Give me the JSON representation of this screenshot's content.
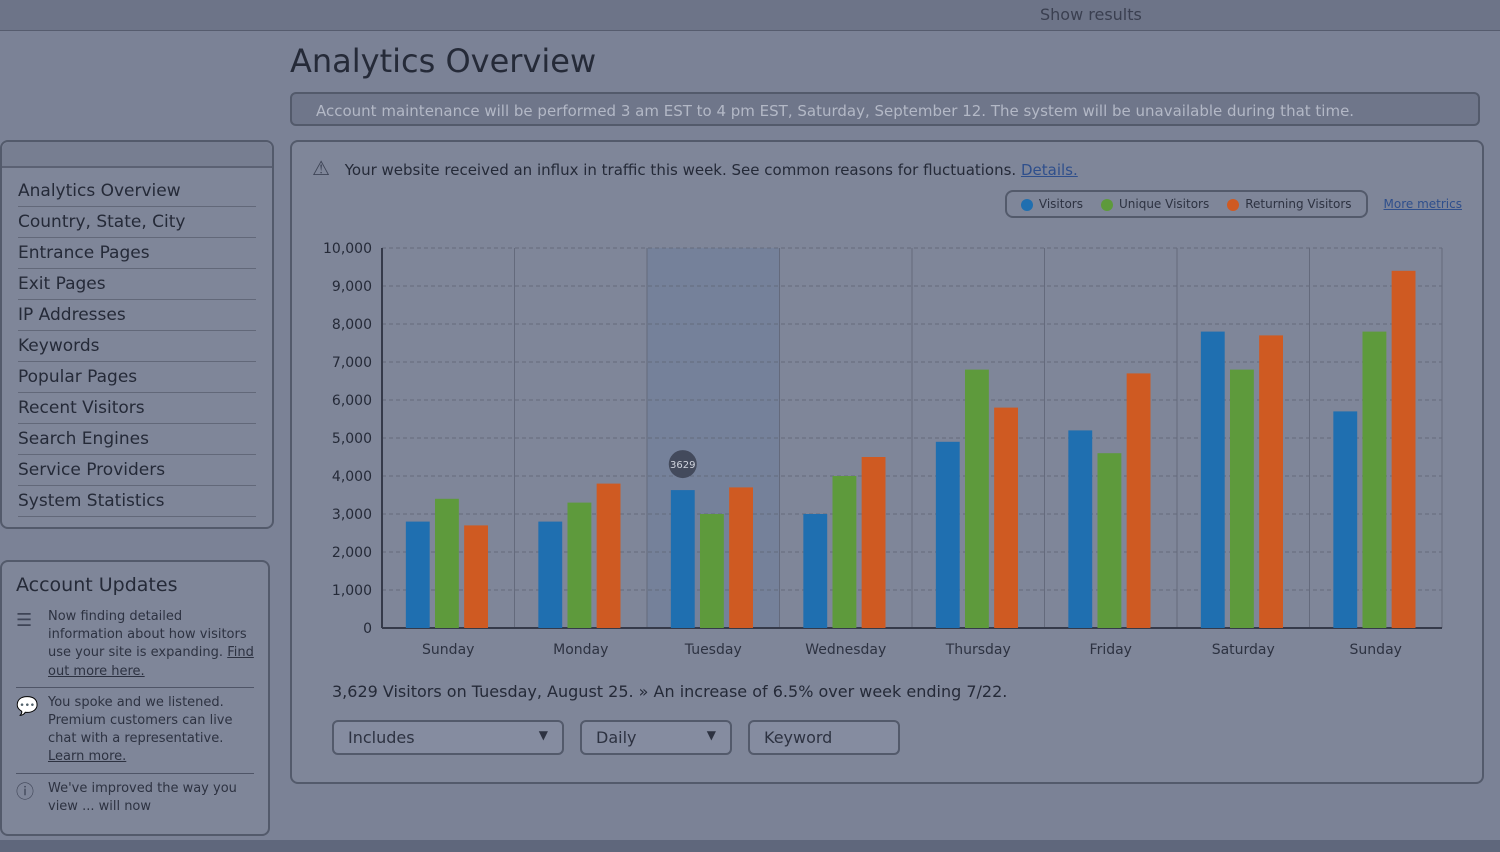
{
  "header": {
    "title": "Analytics Overview",
    "top_partial": "Show results"
  },
  "banner": {
    "text": "Account maintenance will be performed 3 am EST to 4 pm EST, Saturday, September 12. The system will be unavailable during that time."
  },
  "sidebar": {
    "items": [
      {
        "label": "Analytics Overview"
      },
      {
        "label": "Country, State, City"
      },
      {
        "label": "Entrance Pages"
      },
      {
        "label": "Exit Pages"
      },
      {
        "label": "IP Addresses"
      },
      {
        "label": "Keywords"
      },
      {
        "label": "Popular Pages"
      },
      {
        "label": "Recent Visitors"
      },
      {
        "label": "Search Engines"
      },
      {
        "label": "Service Providers"
      },
      {
        "label": "System Statistics"
      }
    ]
  },
  "updates": {
    "title": "Account Updates",
    "items": [
      {
        "icon": "database-icon",
        "text": "Now finding detailed information about how visitors use your site is expanding. ",
        "link": "Find out more here."
      },
      {
        "icon": "chat-bubble-icon",
        "text": "You spoke and we listened. Premium customers can live chat with a representative. ",
        "link": "Learn more."
      },
      {
        "icon": "info-icon",
        "text": "We've improved the way you view ... will now",
        "link": ""
      }
    ]
  },
  "alert": {
    "icon": "warning-icon",
    "text": "Your website received an influx in traffic this week. See common reasons for fluctuations. ",
    "link": "Details."
  },
  "legend": {
    "items": [
      {
        "label": "Visitors",
        "color": "#1f6fb0"
      },
      {
        "label": "Unique Visitors",
        "color": "#5e9a3c"
      },
      {
        "label": "Returning Visitors",
        "color": "#cf5a22"
      }
    ],
    "more_link": "More metrics"
  },
  "chart_data": {
    "type": "bar",
    "categories": [
      "Sunday",
      "Monday",
      "Tuesday",
      "Wednesday",
      "Thursday",
      "Friday",
      "Saturday",
      "Sunday"
    ],
    "series": [
      {
        "name": "Visitors",
        "values": [
          2800,
          2800,
          3629,
          3000,
          4900,
          5200,
          7800,
          5700
        ]
      },
      {
        "name": "Unique Visitors",
        "values": [
          3400,
          3300,
          3000,
          4000,
          6800,
          4600,
          6800,
          7800
        ]
      },
      {
        "name": "Returning Visitors",
        "values": [
          2700,
          3800,
          3700,
          4500,
          5800,
          6700,
          7700,
          9400
        ]
      }
    ],
    "ylim": [
      0,
      10000
    ],
    "yticks": [
      "0",
      "1,000",
      "2,000",
      "3,000",
      "4,000",
      "5,000",
      "6,000",
      "7,000",
      "8,000",
      "9,000",
      "10,000"
    ],
    "grid": true,
    "highlight_category": "Tuesday",
    "annotation": "3629",
    "colors": [
      "#1f6fb0",
      "#5e9a3c",
      "#cf5a22"
    ]
  },
  "summary": {
    "text": "3,629 Visitors on Tuesday, August 25. » An increase of 6.5% over week ending 7/22."
  },
  "controls": {
    "includes": "Includes",
    "period": "Daily",
    "keyword_placeholder": "Keyword"
  }
}
